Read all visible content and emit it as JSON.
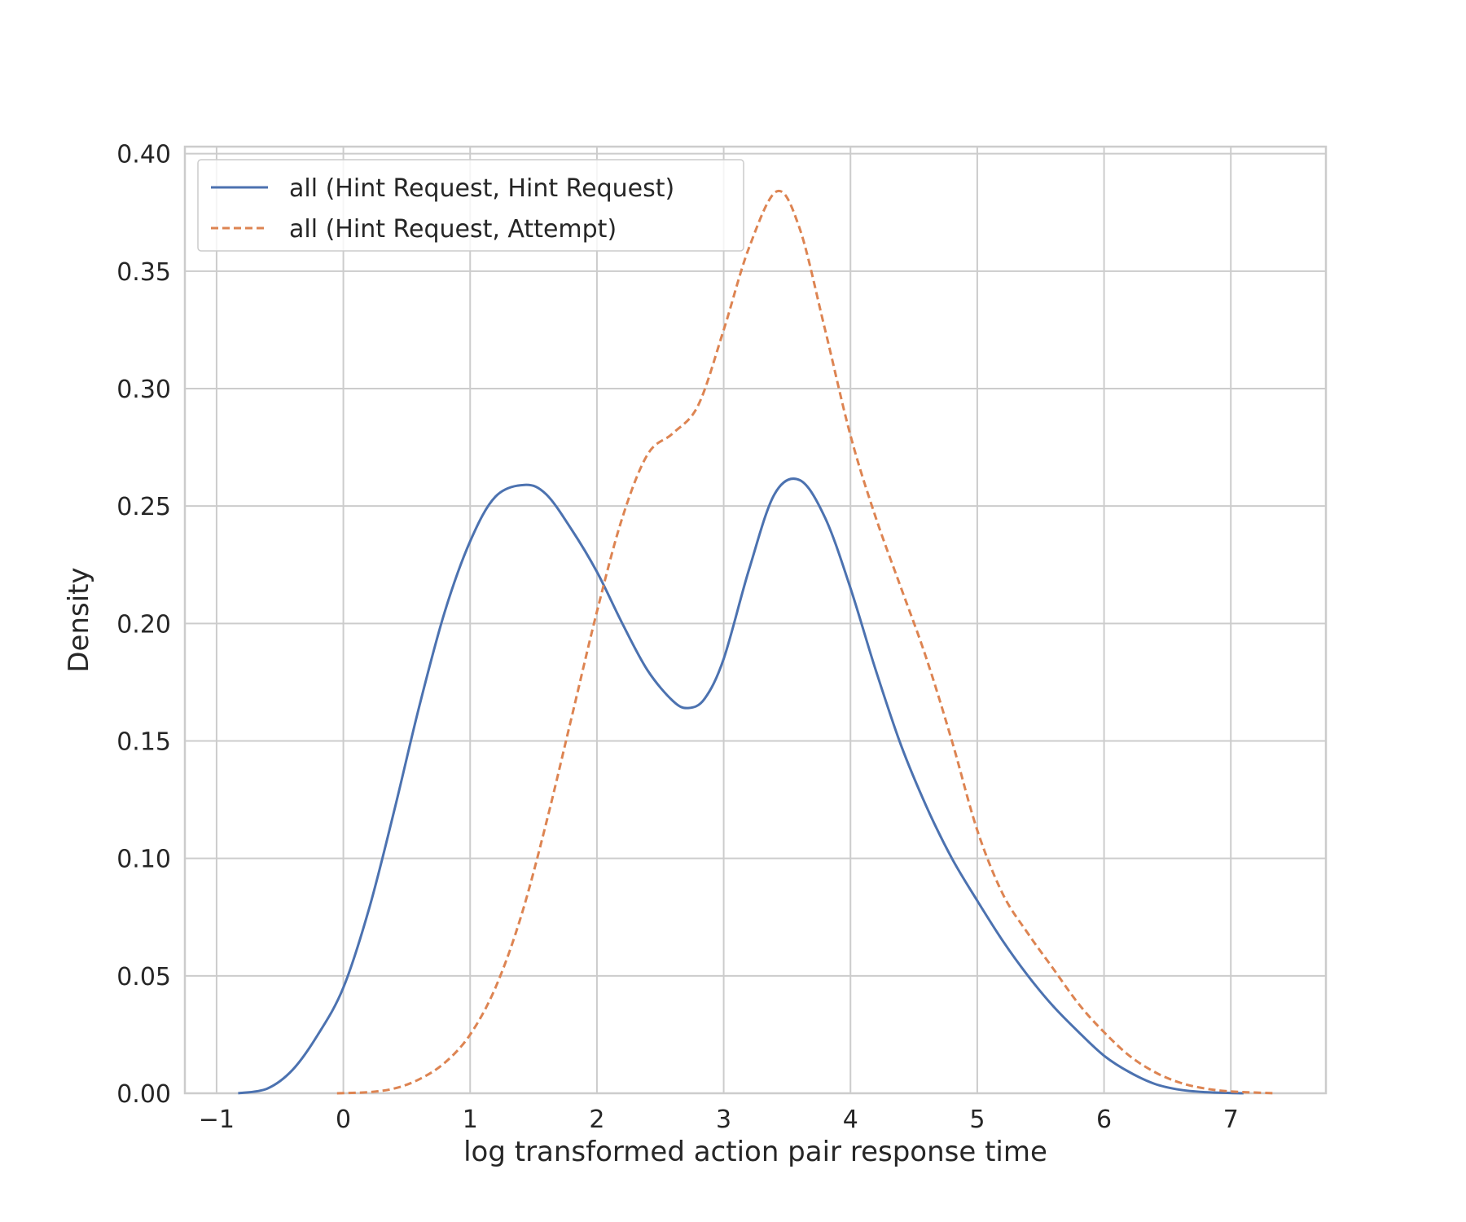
{
  "chart_data": {
    "type": "line",
    "title": "",
    "xlabel": "log transformed action pair response time",
    "ylabel": "Density",
    "xlim": [
      -1.25,
      7.75
    ],
    "ylim": [
      0,
      0.403
    ],
    "x_ticks": [
      -1,
      0,
      1,
      2,
      3,
      4,
      5,
      6,
      7
    ],
    "x_tick_labels": [
      "−1",
      "0",
      "1",
      "2",
      "3",
      "4",
      "5",
      "6",
      "7"
    ],
    "y_ticks": [
      0,
      0.05,
      0.1,
      0.15,
      0.2,
      0.25,
      0.3,
      0.35,
      0.4
    ],
    "y_tick_labels": [
      "0.00",
      "0.05",
      "0.10",
      "0.15",
      "0.20",
      "0.25",
      "0.30",
      "0.35",
      "0.40"
    ],
    "grid": true,
    "legend_position": "top-left",
    "series": [
      {
        "name": "all (Hint Request, Hint Request)",
        "color": "#4c72b0",
        "dash": "solid",
        "points": [
          [
            -0.83,
            0.0
          ],
          [
            -0.6,
            0.002
          ],
          [
            -0.4,
            0.01
          ],
          [
            -0.2,
            0.025
          ],
          [
            0.0,
            0.045
          ],
          [
            0.2,
            0.078
          ],
          [
            0.4,
            0.12
          ],
          [
            0.6,
            0.165
          ],
          [
            0.8,
            0.205
          ],
          [
            1.0,
            0.235
          ],
          [
            1.2,
            0.254
          ],
          [
            1.43,
            0.259
          ],
          [
            1.6,
            0.255
          ],
          [
            1.8,
            0.24
          ],
          [
            2.0,
            0.222
          ],
          [
            2.2,
            0.2
          ],
          [
            2.4,
            0.18
          ],
          [
            2.6,
            0.167
          ],
          [
            2.72,
            0.164
          ],
          [
            2.85,
            0.168
          ],
          [
            3.0,
            0.185
          ],
          [
            3.2,
            0.223
          ],
          [
            3.4,
            0.255
          ],
          [
            3.6,
            0.261
          ],
          [
            3.8,
            0.245
          ],
          [
            4.0,
            0.215
          ],
          [
            4.2,
            0.18
          ],
          [
            4.4,
            0.148
          ],
          [
            4.6,
            0.122
          ],
          [
            4.8,
            0.1
          ],
          [
            5.0,
            0.082
          ],
          [
            5.2,
            0.065
          ],
          [
            5.4,
            0.05
          ],
          [
            5.6,
            0.037
          ],
          [
            5.8,
            0.026
          ],
          [
            6.0,
            0.016
          ],
          [
            6.2,
            0.009
          ],
          [
            6.4,
            0.004
          ],
          [
            6.6,
            0.0015
          ],
          [
            6.8,
            0.0005
          ],
          [
            7.1,
            0.0
          ]
        ]
      },
      {
        "name": "all (Hint Request, Attempt)",
        "color": "#dd8452",
        "dash": "dashed",
        "points": [
          [
            -0.05,
            0.0
          ],
          [
            0.2,
            0.0005
          ],
          [
            0.4,
            0.002
          ],
          [
            0.6,
            0.006
          ],
          [
            0.8,
            0.013
          ],
          [
            1.0,
            0.025
          ],
          [
            1.2,
            0.045
          ],
          [
            1.4,
            0.075
          ],
          [
            1.6,
            0.115
          ],
          [
            1.8,
            0.16
          ],
          [
            2.0,
            0.205
          ],
          [
            2.2,
            0.245
          ],
          [
            2.4,
            0.272
          ],
          [
            2.6,
            0.281
          ],
          [
            2.8,
            0.293
          ],
          [
            3.0,
            0.325
          ],
          [
            3.2,
            0.36
          ],
          [
            3.42,
            0.384
          ],
          [
            3.6,
            0.368
          ],
          [
            3.8,
            0.325
          ],
          [
            4.0,
            0.28
          ],
          [
            4.2,
            0.245
          ],
          [
            4.4,
            0.215
          ],
          [
            4.6,
            0.185
          ],
          [
            4.8,
            0.15
          ],
          [
            5.0,
            0.112
          ],
          [
            5.2,
            0.085
          ],
          [
            5.4,
            0.068
          ],
          [
            5.6,
            0.053
          ],
          [
            5.8,
            0.038
          ],
          [
            6.0,
            0.026
          ],
          [
            6.2,
            0.016
          ],
          [
            6.4,
            0.009
          ],
          [
            6.6,
            0.0045
          ],
          [
            6.8,
            0.002
          ],
          [
            7.0,
            0.0008
          ],
          [
            7.35,
            0.0
          ]
        ]
      }
    ]
  }
}
